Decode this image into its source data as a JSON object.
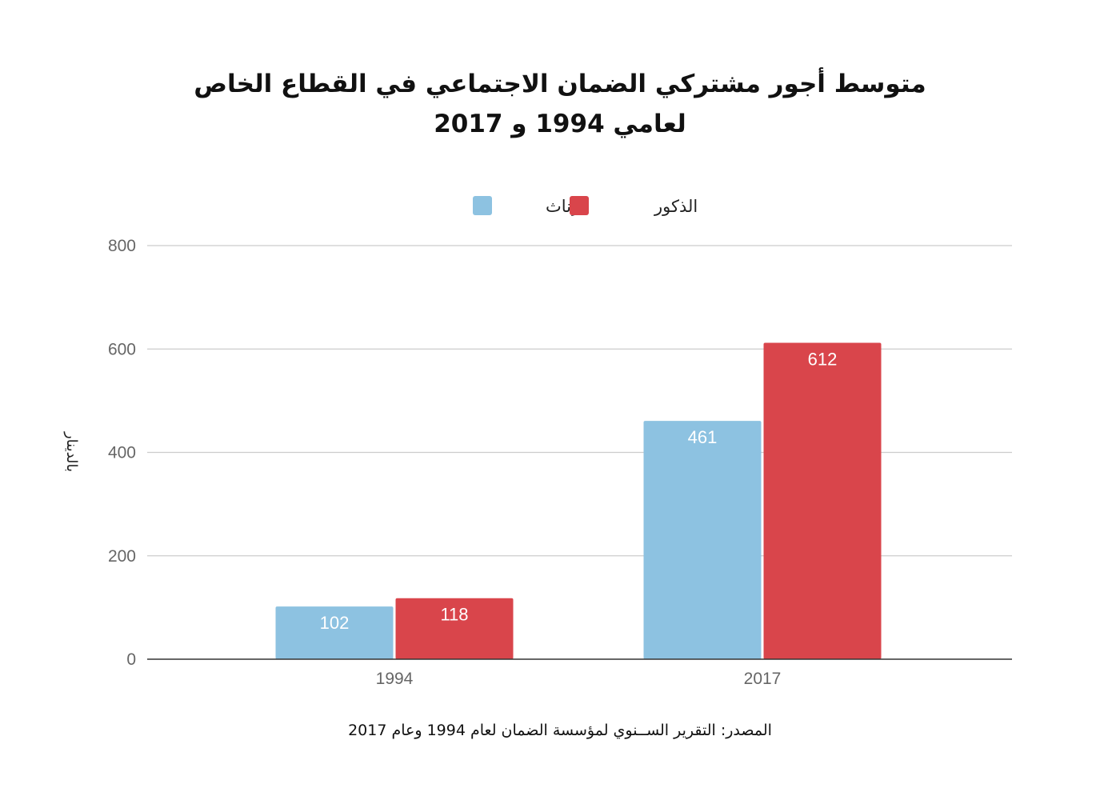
{
  "chart_data": {
    "type": "bar",
    "title_lines": [
      "متوسط أجور مشتركي الضمان الاجتماعي في القطاع الخاص",
      "لعامي 1994 و 2017"
    ],
    "categories": [
      "1994",
      "2017"
    ],
    "series": [
      {
        "name": "الإناث",
        "values": [
          102,
          461
        ],
        "color": "#8dc2e1"
      },
      {
        "name": "الذكور",
        "values": [
          118,
          612
        ],
        "color": "#d9454b"
      }
    ],
    "ylabel": "بالدينار",
    "xlabel": "",
    "ylim": [
      0,
      800
    ],
    "yticks": [
      0,
      200,
      400,
      600,
      800
    ],
    "grid": true,
    "legend_position": "top-center",
    "data_labels": true,
    "source": "المصدر: التقرير الســنوي لمؤسسة الضمان لعام 1994 وعام 2017"
  }
}
